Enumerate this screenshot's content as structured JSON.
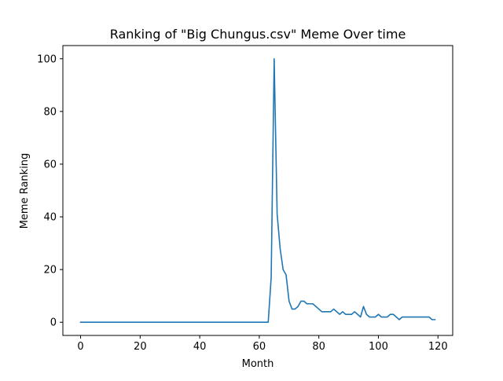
{
  "chart_data": {
    "type": "line",
    "title": "Ranking of \"Big Chungus.csv\" Meme Over time",
    "xlabel": "Month",
    "ylabel": "Meme Ranking",
    "xlim": [
      -5.95,
      124.95
    ],
    "ylim": [
      -5,
      105
    ],
    "xticks": [
      0,
      20,
      40,
      60,
      80,
      100,
      120
    ],
    "yticks": [
      0,
      20,
      40,
      60,
      80,
      100
    ],
    "grid": false,
    "series_color": "#1f77b4",
    "series": [
      {
        "x": [
          0,
          1,
          2,
          3,
          4,
          5,
          6,
          7,
          8,
          9,
          10,
          11,
          12,
          13,
          14,
          15,
          16,
          17,
          18,
          19,
          20,
          21,
          22,
          23,
          24,
          25,
          26,
          27,
          28,
          29,
          30,
          31,
          32,
          33,
          34,
          35,
          36,
          37,
          38,
          39,
          40,
          41,
          42,
          43,
          44,
          45,
          46,
          47,
          48,
          49,
          50,
          51,
          52,
          53,
          54,
          55,
          56,
          57,
          58,
          59,
          60,
          61,
          62,
          63,
          64,
          65,
          66,
          67,
          68,
          69,
          70,
          71,
          72,
          73,
          74,
          75,
          76,
          77,
          78,
          79,
          80,
          81,
          82,
          83,
          84,
          85,
          86,
          87,
          88,
          89,
          90,
          91,
          92,
          93,
          94,
          95,
          96,
          97,
          98,
          99,
          100,
          101,
          102,
          103,
          104,
          105,
          106,
          107,
          108,
          109,
          110,
          111,
          112,
          113,
          114,
          115,
          116,
          117,
          118,
          119
        ],
        "values": [
          0,
          0,
          0,
          0,
          0,
          0,
          0,
          0,
          0,
          0,
          0,
          0,
          0,
          0,
          0,
          0,
          0,
          0,
          0,
          0,
          0,
          0,
          0,
          0,
          0,
          0,
          0,
          0,
          0,
          0,
          0,
          0,
          0,
          0,
          0,
          0,
          0,
          0,
          0,
          0,
          0,
          0,
          0,
          0,
          0,
          0,
          0,
          0,
          0,
          0,
          0,
          0,
          0,
          0,
          0,
          0,
          0,
          0,
          0,
          0,
          0,
          0,
          0,
          0,
          17,
          100,
          41,
          28,
          20,
          18,
          8,
          5,
          5,
          6,
          8,
          8,
          7,
          7,
          7,
          6,
          5,
          4,
          4,
          4,
          4,
          5,
          4,
          3,
          4,
          3,
          3,
          3,
          4,
          3,
          2,
          6,
          3,
          2,
          2,
          2,
          3,
          2,
          2,
          2,
          3,
          3,
          2,
          1,
          2,
          2,
          2,
          2,
          2,
          2,
          2,
          2,
          2,
          2,
          1,
          1
        ]
      }
    ]
  }
}
